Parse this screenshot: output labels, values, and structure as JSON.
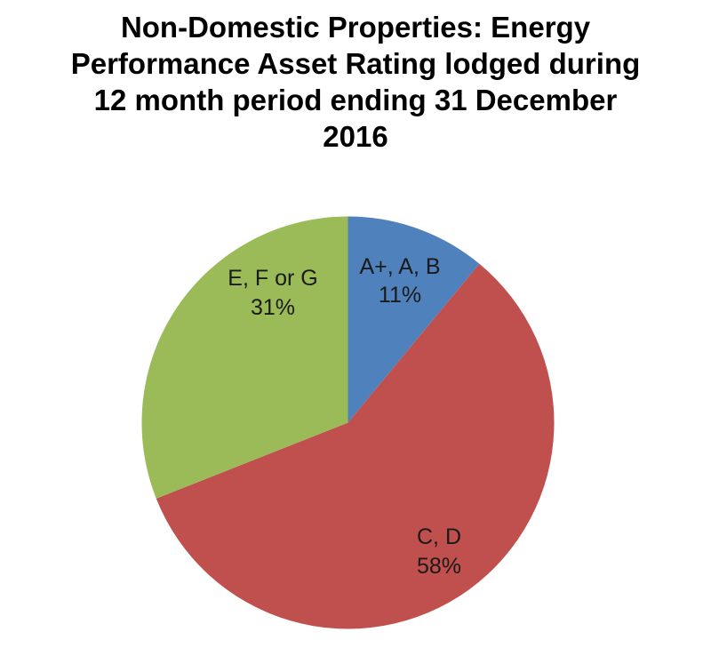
{
  "title": "Non-Domestic Properties: Energy\nPerformance Asset Rating lodged during\n12 month period ending 31 December\n2016",
  "chart_data": {
    "type": "pie",
    "title": "Non-Domestic Properties: Energy Performance Asset Rating lodged during 12 month period ending 31 December 2016",
    "unit": "percent",
    "start_angle_deg": -90,
    "direction": "clockwise",
    "legend": "none",
    "background": "#FFFFFF",
    "slices": [
      {
        "id": "a-plus-a-b",
        "label": "A+, A, B",
        "pct_label": "11%",
        "value": 11,
        "color": "#4F81BD"
      },
      {
        "id": "c-d",
        "label": "C, D",
        "pct_label": "58%",
        "value": 58,
        "color": "#C0504D"
      },
      {
        "id": "e-f-or-g",
        "label": "E, F or G",
        "pct_label": "31%",
        "value": 31,
        "color": "#9BBB59"
      }
    ]
  }
}
